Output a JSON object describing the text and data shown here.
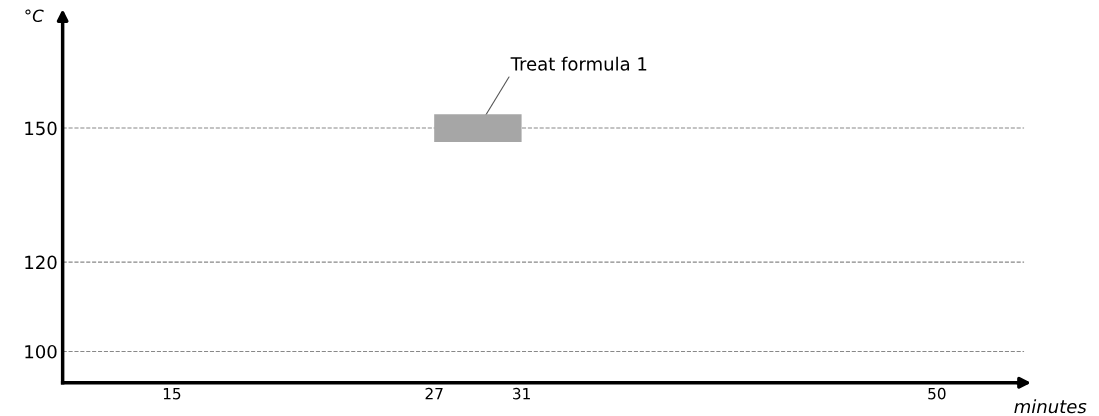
{
  "chart_data": {
    "type": "line",
    "xlabel": "minutes",
    "ylabel": "°C",
    "series": [
      {
        "color": "#a6a6a6",
        "x": [
          27,
          31
        ],
        "values": [
          150,
          150
        ]
      }
    ],
    "xlim": [
      10,
      54
    ],
    "xticks": [
      15,
      27,
      31,
      50
    ],
    "ylim": [
      93,
      174
    ],
    "yticks": [
      100,
      120,
      150
    ],
    "grid": "y",
    "marker": "none",
    "annotations": [
      {
        "text": "Treat formula 1",
        "x": 29,
        "y": 150
      }
    ]
  }
}
